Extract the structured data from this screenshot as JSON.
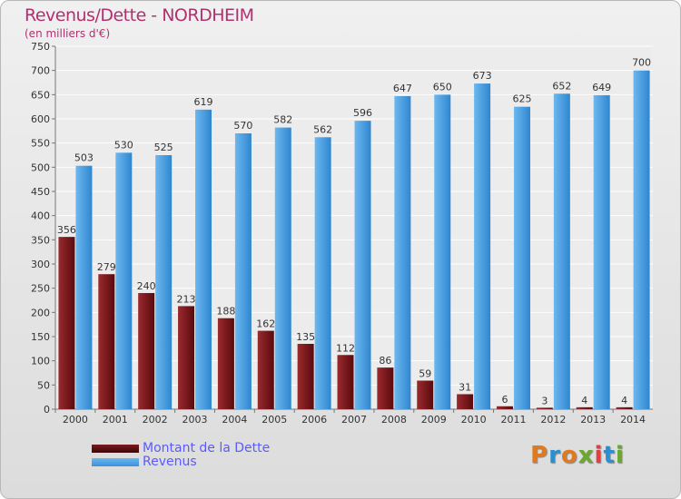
{
  "header": {
    "title": "Revenus/Dette - NORDHEIM",
    "subtitle": "(en milliers d'€)"
  },
  "legend": {
    "debt_label": "Montant de la Dette",
    "revenue_label": "Revenus"
  },
  "logo": {
    "text": "Proxiti"
  },
  "colors": {
    "debt": "#7a1a1e",
    "revenue": "#3a92da",
    "title": "#b03070",
    "legend_text": "#5a5aff"
  },
  "chart_data": {
    "type": "bar",
    "title": "Revenus/Dette - NORDHEIM",
    "subtitle": "(en milliers d'€)",
    "xlabel": "",
    "ylabel": "",
    "ylim": [
      0,
      750
    ],
    "yticks": [
      0,
      50,
      100,
      150,
      200,
      250,
      300,
      350,
      400,
      450,
      500,
      550,
      600,
      650,
      700,
      750
    ],
    "categories": [
      "2000",
      "2001",
      "2002",
      "2003",
      "2004",
      "2005",
      "2006",
      "2007",
      "2008",
      "2009",
      "2010",
      "2011",
      "2012",
      "2013",
      "2014"
    ],
    "series": [
      {
        "name": "Montant de la Dette",
        "values": [
          356,
          279,
          240,
          213,
          188,
          162,
          135,
          112,
          86,
          59,
          31,
          6,
          3,
          4,
          4
        ]
      },
      {
        "name": "Revenus",
        "values": [
          503,
          530,
          525,
          619,
          570,
          582,
          562,
          596,
          647,
          650,
          673,
          625,
          652,
          649,
          700
        ]
      }
    ],
    "grid": true,
    "legend_position": "bottom-left"
  }
}
